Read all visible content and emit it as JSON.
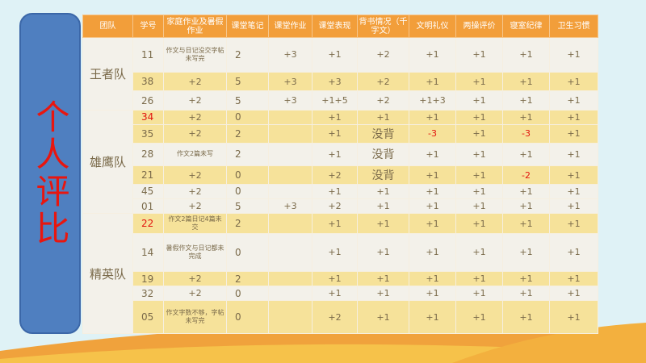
{
  "side_title": "个人评比",
  "headers": [
    "团队",
    "学号",
    "家庭作业及暑假作业",
    "课堂笔记",
    "课堂作业",
    "课堂表现",
    "背书情况（千字文）",
    "文明礼仪",
    "两操评价",
    "寝室纪律",
    "卫生习惯"
  ],
  "teams": [
    {
      "name": "王者队",
      "rows": [
        {
          "id": "11",
          "cols": [
            "作文与日记没交字帖未写完",
            "2",
            "+3",
            "+1",
            "+2",
            "+1",
            "+1",
            "+1",
            "+1"
          ]
        },
        {
          "id": "38",
          "cols": [
            "+2",
            "5",
            "+3",
            "+3",
            "+2",
            "+1",
            "+1",
            "+1",
            "+1"
          ]
        },
        {
          "id": "26",
          "cols": [
            "+2",
            "5",
            "+3",
            "+1+5",
            "+2",
            "+1+3",
            "+1",
            "+1",
            "+1"
          ]
        }
      ]
    },
    {
      "name": "雄鹰队",
      "rows": [
        {
          "id": "34",
          "cols": [
            "+2",
            "0",
            "",
            "+1",
            "+1",
            "+1",
            "+1",
            "+1",
            "+1"
          ]
        },
        {
          "id": "35",
          "cols": [
            "+2",
            "2",
            "",
            "+1",
            "没背",
            "-3",
            "+1",
            "-3",
            "+1"
          ]
        },
        {
          "id": "28",
          "cols": [
            "作文2篇未写",
            "2",
            "",
            "+1",
            "没背",
            "+1",
            "+1",
            "+1",
            "+1"
          ]
        },
        {
          "id": "21",
          "cols": [
            "+2",
            "0",
            "",
            "+2",
            "没背",
            "+1",
            "+1",
            "-2",
            "+1"
          ]
        },
        {
          "id": "45",
          "cols": [
            "+2",
            "0",
            "",
            "+1",
            "+1",
            "+1",
            "+1",
            "+1",
            "+1"
          ]
        },
        {
          "id": "01",
          "cols": [
            "+2",
            "5",
            "+3",
            "+2",
            "+1",
            "+1",
            "+1",
            "+1",
            "+1"
          ]
        }
      ]
    },
    {
      "name": "精英队",
      "rows": [
        {
          "id": "22",
          "cols": [
            "作文2篇日记4篇未交",
            "2",
            "",
            "+1",
            "+1",
            "+1",
            "+1",
            "+1",
            "+1"
          ]
        },
        {
          "id": "14",
          "cols": [
            "暑假作文与日记都未完成",
            "0",
            "",
            "+1",
            "+1",
            "+1",
            "+1",
            "+1",
            "+1"
          ]
        },
        {
          "id": "19",
          "cols": [
            "+2",
            "2",
            "",
            "+1",
            "+1",
            "+1",
            "+1",
            "+1",
            "+1"
          ]
        },
        {
          "id": "32",
          "cols": [
            "+2",
            "0",
            "",
            "+1",
            "+1",
            "+1",
            "+1",
            "+1",
            "+1"
          ]
        },
        {
          "id": "05",
          "cols": [
            "作文字数不够，字帖未写完",
            "0",
            "",
            "+2",
            "+1",
            "+1",
            "+1",
            "+1",
            "+1"
          ]
        }
      ]
    }
  ],
  "colors": {
    "header_bg": "#f29e3a",
    "row_yellow": "#f6e29a",
    "row_light": "#f3f1ea",
    "panel": "#4f7fc0",
    "title_red": "#e8160f",
    "negative_red": "#e2140f"
  }
}
